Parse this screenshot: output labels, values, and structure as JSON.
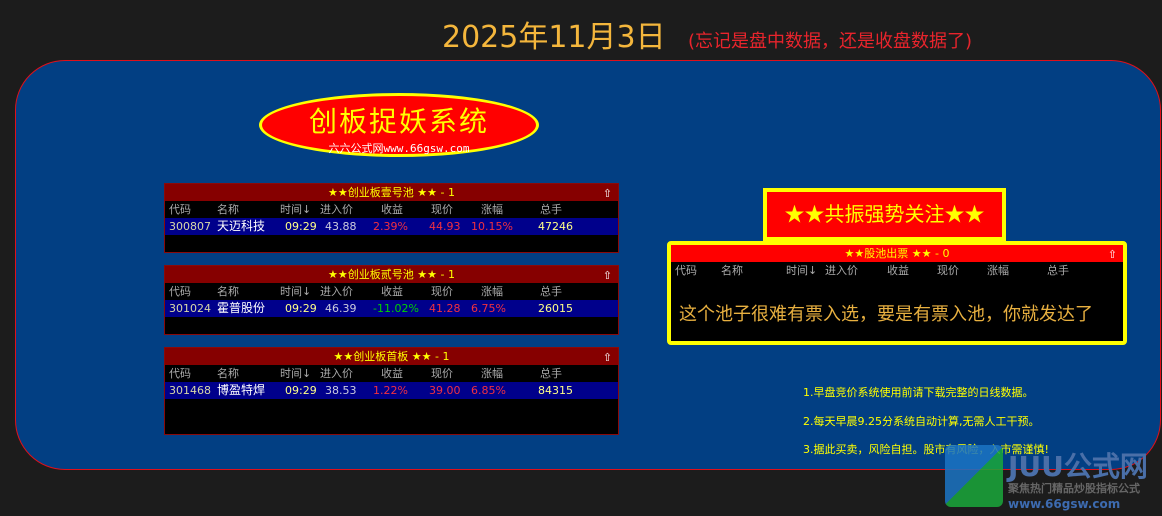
{
  "header": {
    "date": "2025年11月3日",
    "note": "(忘记是盘中数据，还是收盘数据了)"
  },
  "logo": {
    "title": "创板捉妖系统",
    "subtitle": "六六公式网www.66gsw.com"
  },
  "columns": [
    "代码",
    "名称",
    "时间↓",
    "进入价",
    "收益",
    "现价",
    "涨幅",
    "总手"
  ],
  "pools": [
    {
      "title": "★★创业板壹号池 ★★ - 1",
      "rows": [
        {
          "code": "300807",
          "name": "天迈科技",
          "time": "09:29",
          "entry": "43.88",
          "pnl": "2.39%",
          "price": "44.93",
          "pct": "10.15%",
          "vol": "47246"
        }
      ]
    },
    {
      "title": "★★创业板贰号池 ★★ - 1",
      "rows": [
        {
          "code": "301024",
          "name": "霍普股份",
          "time": "09:29",
          "entry": "46.39",
          "pnl": "-11.02%",
          "price": "41.28",
          "pct": "6.75%",
          "vol": "26015"
        }
      ]
    },
    {
      "title": "★★创业板首板 ★★ - 1",
      "rows": [
        {
          "code": "301468",
          "name": "博盈特焊",
          "time": "09:29",
          "entry": "38.53",
          "pnl": "1.22%",
          "price": "39.00",
          "pct": "6.85%",
          "vol": "84315"
        }
      ]
    }
  ],
  "resonance": {
    "title": "★★共振强势关注★★",
    "pool_title": "★★股池出票 ★★ - 0",
    "message": "这个池子很难有票入选，要是有票入池，你就发达了"
  },
  "tips": [
    "1.早盘竞价系统使用前请下载完整的日线数据。",
    "2.每天早晨9.25分系统自动计算,无需人工干预。",
    "3.据此买卖，风险自担。股市有风险，入市需谨慎!"
  ],
  "watermark": {
    "name": "JUU公式网",
    "slogan": "聚焦热门精品炒股指标公式",
    "url": "www.66gsw.com"
  },
  "colors": {
    "panel": "#023f83",
    "positive": "#f03040",
    "negative": "#00d000"
  }
}
